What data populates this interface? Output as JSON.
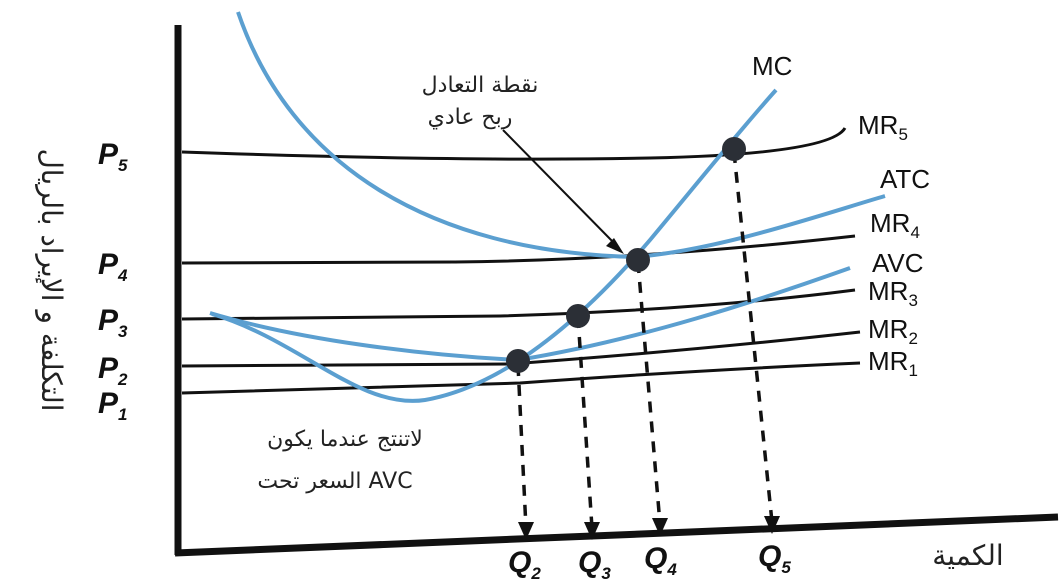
{
  "y_axis_title": "التكلفة و الإيراد بالريال",
  "x_axis_title": "الكمية",
  "price_labels": [
    {
      "main": "P",
      "sub": "5"
    },
    {
      "main": "P",
      "sub": "4"
    },
    {
      "main": "P",
      "sub": "3"
    },
    {
      "main": "P",
      "sub": "2"
    },
    {
      "main": "P",
      "sub": "1"
    }
  ],
  "quantity_labels": [
    {
      "main": "Q",
      "sub": "2"
    },
    {
      "main": "Q",
      "sub": "3"
    },
    {
      "main": "Q",
      "sub": "4"
    },
    {
      "main": "Q",
      "sub": "5"
    }
  ],
  "curves": {
    "mc": "MC",
    "atc": "ATC",
    "avc": "AVC"
  },
  "mr_labels": [
    {
      "main": "MR",
      "sub": "5"
    },
    {
      "main": "MR",
      "sub": "4"
    },
    {
      "main": "MR",
      "sub": "3"
    },
    {
      "main": "MR",
      "sub": "2"
    },
    {
      "main": "MR",
      "sub": "1"
    }
  ],
  "annotations": {
    "breakeven_line1": "نقطة التعادل",
    "breakeven_line2": "ربح عادي",
    "shutdown_line1": "لاتنتج عندما يكون",
    "shutdown_line2": "السعر تحت AVC"
  },
  "colors": {
    "curve_blue": "#5b9fd0",
    "line_black": "#111111",
    "dot": "#2b2f36"
  }
}
